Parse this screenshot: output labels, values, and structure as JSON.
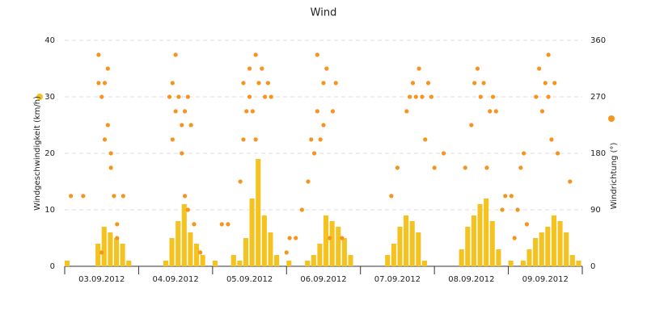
{
  "chart_data": {
    "type": "bar-scatter",
    "title": "Wind",
    "xlim": [
      0,
      168
    ],
    "xticks": [
      {
        "value": 12,
        "label": "03.09.2012"
      },
      {
        "value": 36,
        "label": "04.09.2012"
      },
      {
        "value": 60,
        "label": "05.09.2012"
      },
      {
        "value": 84,
        "label": "06.09.2012"
      },
      {
        "value": 108,
        "label": "07.09.2012"
      },
      {
        "value": 132,
        "label": "08.09.2012"
      },
      {
        "value": 156,
        "label": "09.09.2012"
      }
    ],
    "ylim": [
      0,
      40
    ],
    "yticks": [
      0,
      10,
      20,
      30,
      40
    ],
    "y2lim": [
      0,
      360
    ],
    "y2ticks": [
      0,
      90,
      180,
      270,
      360
    ],
    "grid": true,
    "series": [
      {
        "name": "Windgeschwindigkeit (km/h)",
        "type": "bar",
        "color": "#f5c31f",
        "x": [
          0,
          2,
          4,
          6,
          8,
          10,
          12,
          14,
          16,
          18,
          20,
          22,
          24,
          26,
          28,
          30,
          32,
          34,
          36,
          38,
          40,
          42,
          44,
          46,
          48,
          50,
          52,
          54,
          56,
          58,
          60,
          62,
          64,
          66,
          68,
          70,
          72,
          74,
          76,
          78,
          80,
          82,
          84,
          86,
          88,
          90,
          92,
          94,
          96,
          98,
          100,
          102,
          104,
          106,
          108,
          110,
          112,
          114,
          116,
          118,
          120,
          122,
          124,
          126,
          128,
          130,
          132,
          134,
          136,
          138,
          140,
          142,
          144,
          146,
          148,
          150,
          152,
          154,
          156,
          158,
          160,
          162,
          164,
          166
        ],
        "values": [
          1,
          0,
          0,
          0,
          0,
          4,
          7,
          6,
          5,
          4,
          1,
          0,
          0,
          0,
          0,
          0,
          1,
          5,
          8,
          11,
          6,
          4,
          2,
          0,
          1,
          0,
          0,
          2,
          1,
          5,
          12,
          19,
          9,
          6,
          2,
          0,
          1,
          0,
          0,
          1,
          2,
          4,
          9,
          8,
          7,
          5,
          2,
          0,
          0,
          0,
          0,
          0,
          2,
          4,
          7,
          9,
          8,
          6,
          1,
          0,
          0,
          0,
          0,
          0,
          3,
          7,
          9,
          11,
          12,
          8,
          3,
          0,
          1,
          0,
          1,
          3,
          5,
          6,
          7,
          9,
          8,
          6,
          2,
          1
        ]
      },
      {
        "name": "Windrichtung (°)",
        "type": "scatter",
        "axis": "y2",
        "color": "#f7941d",
        "x": [
          2,
          6,
          11,
          11,
          12,
          12,
          13,
          13,
          14,
          14,
          15,
          15,
          16,
          17,
          17,
          19,
          34,
          35,
          35,
          36,
          36,
          37,
          38,
          38,
          39,
          39,
          40,
          40,
          41,
          42,
          44,
          51,
          53,
          57,
          58,
          58,
          59,
          60,
          60,
          61,
          62,
          62,
          63,
          64,
          65,
          66,
          67,
          72,
          73,
          75,
          77,
          79,
          80,
          81,
          82,
          82,
          83,
          84,
          84,
          85,
          86,
          87,
          88,
          90,
          106,
          108,
          111,
          112,
          113,
          114,
          115,
          116,
          117,
          118,
          119,
          120,
          123,
          130,
          132,
          133,
          134,
          135,
          136,
          137,
          138,
          139,
          140,
          142,
          143,
          145,
          146,
          147,
          148,
          149,
          150,
          153,
          154,
          155,
          156,
          157,
          157,
          158,
          159,
          160,
          164
        ],
        "values": [
          112,
          112,
          337,
          292,
          270,
          22,
          292,
          202,
          315,
          225,
          157,
          180,
          112,
          67,
          45,
          112,
          270,
          292,
          202,
          337,
          247,
          270,
          225,
          180,
          247,
          112,
          270,
          90,
          225,
          67,
          22,
          67,
          67,
          135,
          202,
          292,
          247,
          315,
          270,
          247,
          337,
          202,
          292,
          315,
          270,
          292,
          270,
          22,
          45,
          45,
          90,
          135,
          202,
          180,
          247,
          337,
          202,
          225,
          292,
          315,
          45,
          247,
          292,
          45,
          112,
          157,
          247,
          270,
          292,
          270,
          315,
          270,
          202,
          292,
          270,
          157,
          180,
          157,
          225,
          292,
          315,
          270,
          292,
          157,
          247,
          270,
          247,
          90,
          112,
          112,
          45,
          90,
          157,
          180,
          67,
          270,
          315,
          247,
          292,
          337,
          270,
          202,
          292,
          180,
          135
        ]
      }
    ]
  }
}
